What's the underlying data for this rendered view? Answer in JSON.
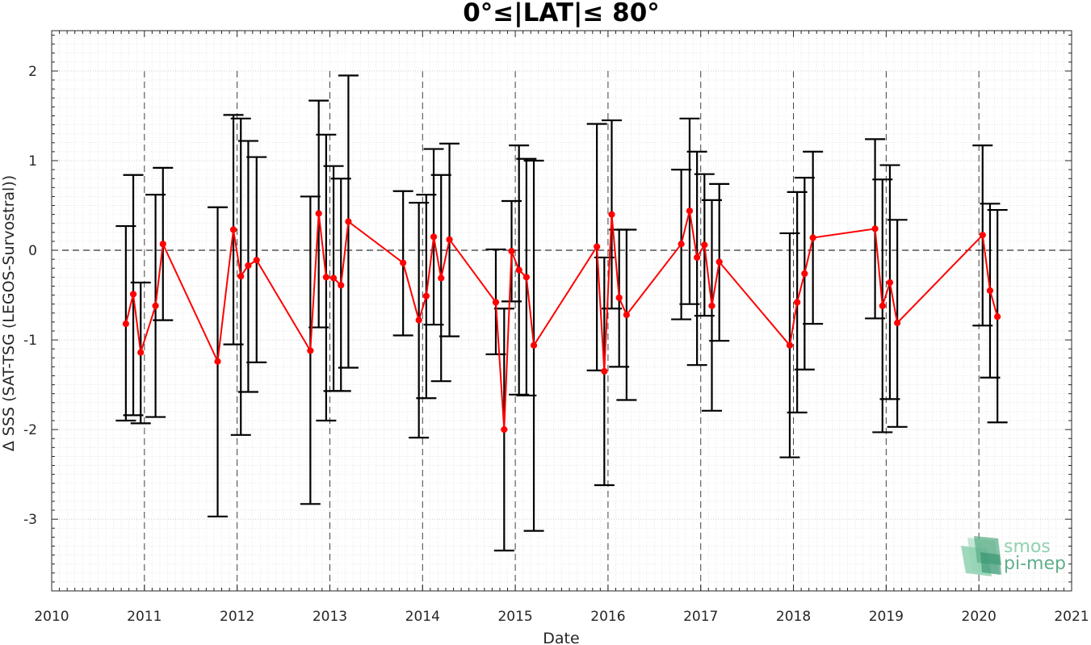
{
  "chart_data": {
    "type": "scatter",
    "title": "0°≤|LAT|≤ 80°",
    "xlabel": "Date",
    "ylabel": "Δ SSS (SAT-TSG (LEGOS-Survostral))",
    "xlim": [
      2010,
      2021
    ],
    "ylim": [
      -3.8,
      2.45
    ],
    "xticks": [
      "2010",
      "2011",
      "2012",
      "2013",
      "2014",
      "2015",
      "2016",
      "2017",
      "2018",
      "2019",
      "2020",
      "2021"
    ],
    "yticks": [
      "-3",
      "-2",
      "-1",
      "0",
      "1",
      "2"
    ],
    "grid": true,
    "reference_line_y": 0,
    "series": [
      {
        "color": "#ff0000",
        "errorbar_color": "#000000",
        "points": [
          {
            "x": 2010.8,
            "y": -0.82,
            "low": -1.9,
            "high": 0.27
          },
          {
            "x": 2010.88,
            "y": -0.49,
            "low": -1.84,
            "high": 0.84
          },
          {
            "x": 2010.96,
            "y": -1.14,
            "low": -1.93,
            "high": -0.36
          },
          {
            "x": 2011.12,
            "y": -0.62,
            "low": -1.86,
            "high": 0.62
          },
          {
            "x": 2011.2,
            "y": 0.07,
            "low": -0.78,
            "high": 0.92
          },
          {
            "x": 2011.79,
            "y": -1.24,
            "low": -2.97,
            "high": 0.48
          },
          {
            "x": 2011.96,
            "y": 0.23,
            "low": -1.05,
            "high": 1.51
          },
          {
            "x": 2012.04,
            "y": -0.29,
            "low": -2.06,
            "high": 1.47
          },
          {
            "x": 2012.12,
            "y": -0.17,
            "low": -1.58,
            "high": 1.22
          },
          {
            "x": 2012.21,
            "y": -0.11,
            "low": -1.25,
            "high": 1.04
          },
          {
            "x": 2012.79,
            "y": -1.12,
            "low": -2.83,
            "high": 0.6
          },
          {
            "x": 2012.88,
            "y": 0.41,
            "low": -0.86,
            "high": 1.67
          },
          {
            "x": 2012.96,
            "y": -0.3,
            "low": -1.9,
            "high": 1.29
          },
          {
            "x": 2013.04,
            "y": -0.31,
            "low": -1.57,
            "high": 0.94
          },
          {
            "x": 2013.12,
            "y": -0.39,
            "low": -1.57,
            "high": 0.8
          },
          {
            "x": 2013.2,
            "y": 0.32,
            "low": -1.31,
            "high": 1.95
          },
          {
            "x": 2013.79,
            "y": -0.14,
            "low": -0.95,
            "high": 0.66
          },
          {
            "x": 2013.96,
            "y": -0.78,
            "low": -2.09,
            "high": 0.53
          },
          {
            "x": 2014.04,
            "y": -0.51,
            "low": -1.65,
            "high": 0.62
          },
          {
            "x": 2014.12,
            "y": 0.15,
            "low": -0.83,
            "high": 1.13
          },
          {
            "x": 2014.2,
            "y": -0.31,
            "low": -1.46,
            "high": 0.84
          },
          {
            "x": 2014.29,
            "y": 0.12,
            "low": -0.96,
            "high": 1.19
          },
          {
            "x": 2014.79,
            "y": -0.58,
            "low": -1.16,
            "high": 0.01
          },
          {
            "x": 2014.88,
            "y": -2.0,
            "low": -3.35,
            "high": -0.65
          },
          {
            "x": 2014.96,
            "y": -0.01,
            "low": -0.57,
            "high": 0.55
          },
          {
            "x": 2015.04,
            "y": -0.22,
            "low": -1.61,
            "high": 1.17
          },
          {
            "x": 2015.12,
            "y": -0.3,
            "low": -1.62,
            "high": 1.02
          },
          {
            "x": 2015.2,
            "y": -1.06,
            "low": -3.13,
            "high": 1.0
          },
          {
            "x": 2015.88,
            "y": 0.04,
            "low": -1.34,
            "high": 1.41
          },
          {
            "x": 2015.96,
            "y": -1.35,
            "low": -2.62,
            "high": -0.08
          },
          {
            "x": 2016.04,
            "y": 0.4,
            "low": -0.65,
            "high": 1.45
          },
          {
            "x": 2016.12,
            "y": -0.53,
            "low": -1.3,
            "high": 0.23
          },
          {
            "x": 2016.2,
            "y": -0.72,
            "low": -1.67,
            "high": 0.23
          },
          {
            "x": 2016.79,
            "y": 0.07,
            "low": -0.77,
            "high": 0.9
          },
          {
            "x": 2016.88,
            "y": 0.44,
            "low": -0.6,
            "high": 1.47
          },
          {
            "x": 2016.96,
            "y": -0.08,
            "low": -1.28,
            "high": 1.1
          },
          {
            "x": 2017.04,
            "y": 0.06,
            "low": -0.73,
            "high": 0.85
          },
          {
            "x": 2017.12,
            "y": -0.62,
            "low": -1.79,
            "high": 0.56
          },
          {
            "x": 2017.2,
            "y": -0.13,
            "low": -1.01,
            "high": 0.74
          },
          {
            "x": 2017.96,
            "y": -1.06,
            "low": -2.31,
            "high": 0.19
          },
          {
            "x": 2018.04,
            "y": -0.58,
            "low": -1.81,
            "high": 0.65
          },
          {
            "x": 2018.12,
            "y": -0.26,
            "low": -1.33,
            "high": 0.81
          },
          {
            "x": 2018.21,
            "y": 0.14,
            "low": -0.82,
            "high": 1.1
          },
          {
            "x": 2018.88,
            "y": 0.24,
            "low": -0.76,
            "high": 1.24
          },
          {
            "x": 2018.96,
            "y": -0.62,
            "low": -2.03,
            "high": 0.79
          },
          {
            "x": 2019.04,
            "y": -0.36,
            "low": -1.66,
            "high": 0.95
          },
          {
            "x": 2019.12,
            "y": -0.81,
            "low": -1.97,
            "high": 0.34
          },
          {
            "x": 2020.04,
            "y": 0.17,
            "low": -0.84,
            "high": 1.17
          },
          {
            "x": 2020.12,
            "y": -0.45,
            "low": -1.42,
            "high": 0.52
          },
          {
            "x": 2020.2,
            "y": -0.74,
            "low": -1.92,
            "high": 0.45
          }
        ]
      }
    ]
  },
  "logo": {
    "line1": "smos",
    "line2": "pi-mep",
    "colors": [
      "#8fd1b0",
      "#5faf89",
      "#2f8f6a",
      "#b7e3cc"
    ]
  }
}
